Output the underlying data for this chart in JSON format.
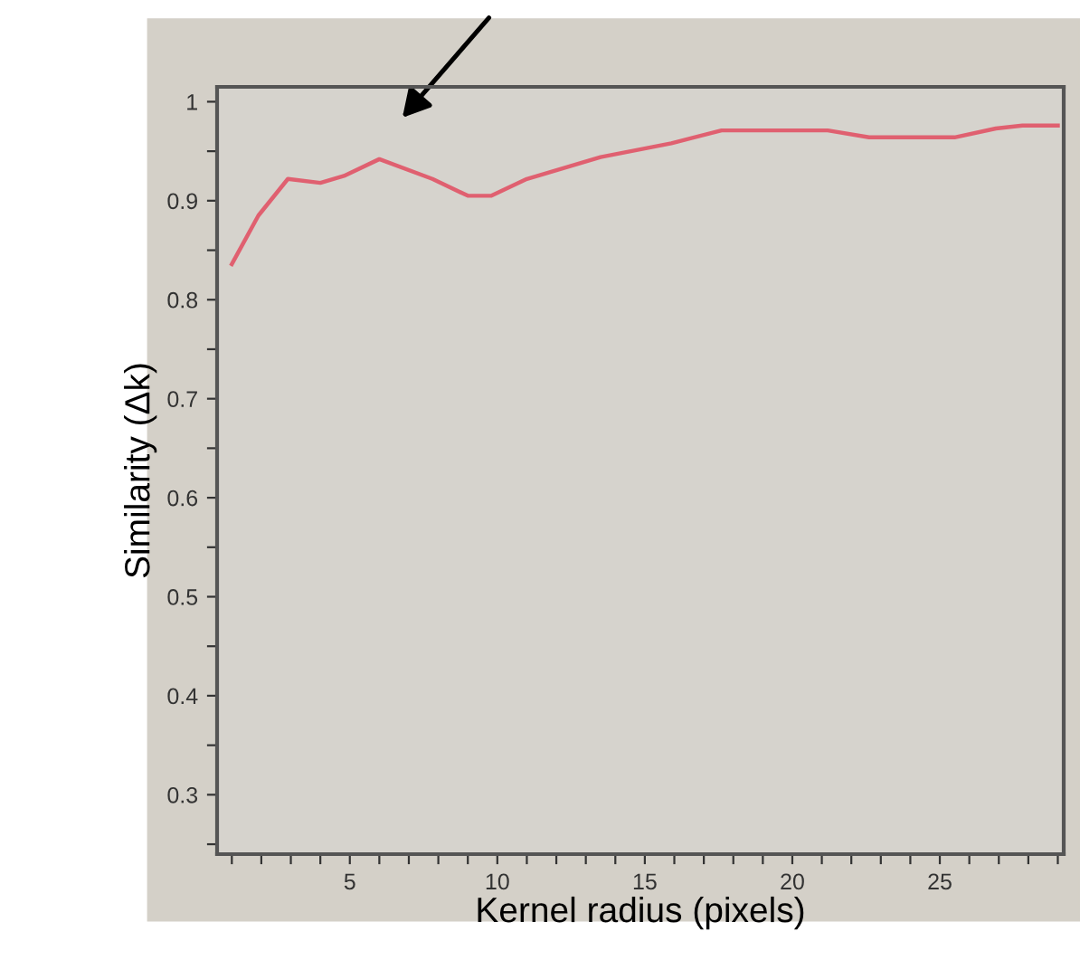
{
  "chart_data": {
    "type": "line",
    "xlabel": "Kernel radius (pixels)",
    "ylabel": "Similarity (Δk)",
    "x": [
      1,
      1.9,
      2.9,
      4,
      4.8,
      6,
      7.8,
      9,
      9.8,
      11,
      13.5,
      15.9,
      17.6,
      21.2,
      22.6,
      25.5,
      26.9,
      27.8,
      29
    ],
    "series": [
      {
        "color": "#e06070",
        "values": [
          0.836,
          0.885,
          0.922,
          0.918,
          0.925,
          0.942,
          0.922,
          0.905,
          0.905,
          0.922,
          0.944,
          0.958,
          0.971,
          0.971,
          0.964,
          0.964,
          0.973,
          0.976,
          0.976
        ]
      }
    ],
    "xlim": [
      0.5,
      29.2
    ],
    "ylim": [
      0.24,
      1.015
    ],
    "xticks": [
      {
        "value": 1,
        "label": null
      },
      {
        "value": 2,
        "label": null
      },
      {
        "value": 3,
        "label": null
      },
      {
        "value": 4,
        "label": null
      },
      5,
      {
        "value": 6,
        "label": null
      },
      {
        "value": 7,
        "label": null
      },
      {
        "value": 8,
        "label": null
      },
      {
        "value": 9,
        "label": null
      },
      10,
      {
        "value": 11,
        "label": null
      },
      {
        "value": 12,
        "label": null
      },
      {
        "value": 13,
        "label": null
      },
      {
        "value": 14,
        "label": null
      },
      15,
      {
        "value": 16,
        "label": null
      },
      {
        "value": 17,
        "label": null
      },
      {
        "value": 18,
        "label": null
      },
      {
        "value": 19,
        "label": null
      },
      20,
      {
        "value": 21,
        "label": null
      },
      {
        "value": 22,
        "label": null
      },
      {
        "value": 23,
        "label": null
      },
      {
        "value": 24,
        "label": null
      },
      25,
      {
        "value": 26,
        "label": null
      },
      {
        "value": 27,
        "label": null
      },
      {
        "value": 28,
        "label": null
      },
      {
        "value": 29,
        "label": null
      }
    ],
    "yticks": [
      {
        "value": 0.25,
        "label": null
      },
      0.3,
      {
        "value": 0.35,
        "label": null
      },
      0.4,
      {
        "value": 0.45,
        "label": null
      },
      0.5,
      {
        "value": 0.55,
        "label": null
      },
      0.6,
      {
        "value": 0.65,
        "label": null
      },
      0.7,
      {
        "value": 0.75,
        "label": null
      },
      0.8,
      {
        "value": 0.85,
        "label": null
      },
      0.9,
      {
        "value": 0.95,
        "label": null
      },
      1
    ],
    "grid": false,
    "legend": false,
    "marker": "none",
    "line_style": "solid"
  }
}
